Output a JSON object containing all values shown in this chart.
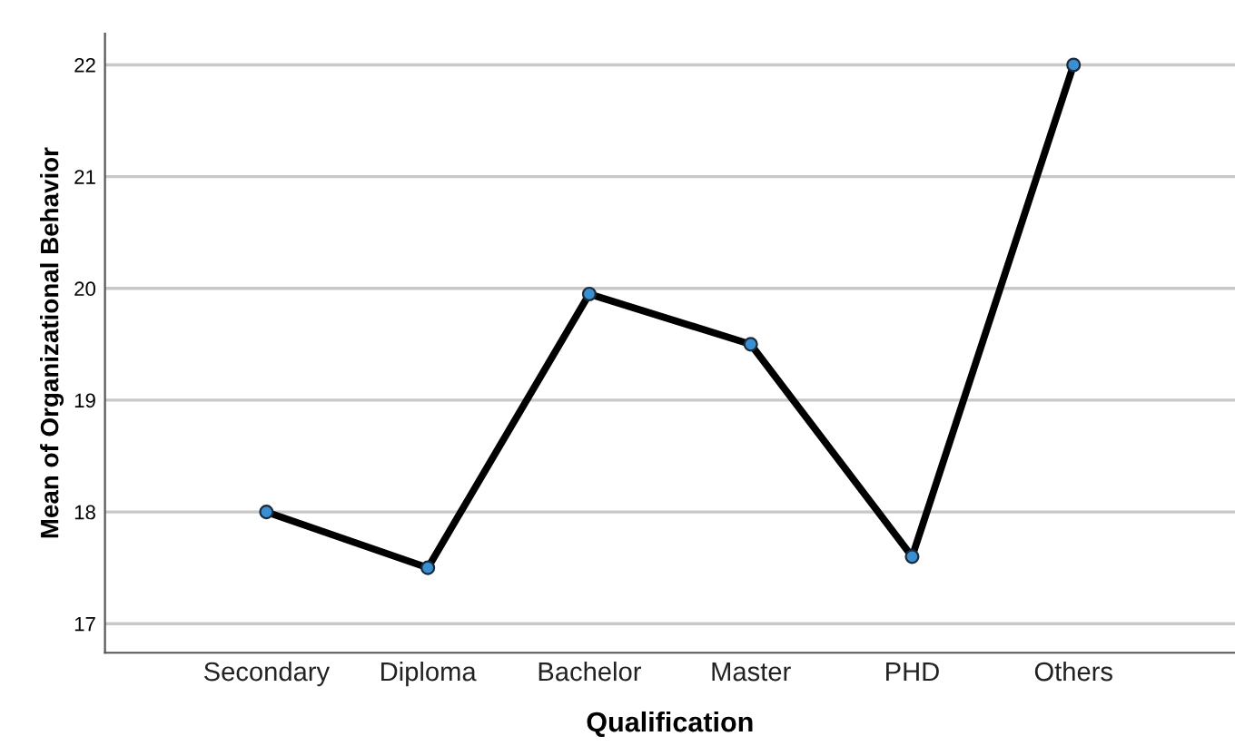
{
  "chart_data": {
    "type": "line",
    "xlabel": "Qualification",
    "ylabel": "Mean of Organizational Behavior",
    "categories": [
      "Secondary",
      "Diploma",
      "Bachelor",
      "Master",
      "PHD",
      "Others"
    ],
    "series": [
      {
        "color": "#000000",
        "values": [
          18.0,
          17.5,
          19.95,
          19.5,
          17.6,
          22.0
        ]
      }
    ],
    "ylim": [
      16.74,
      22.28
    ],
    "yticks": [
      17,
      18,
      19,
      20,
      21,
      22
    ],
    "grid": "y",
    "marker": "circle",
    "line_style": "solid"
  }
}
